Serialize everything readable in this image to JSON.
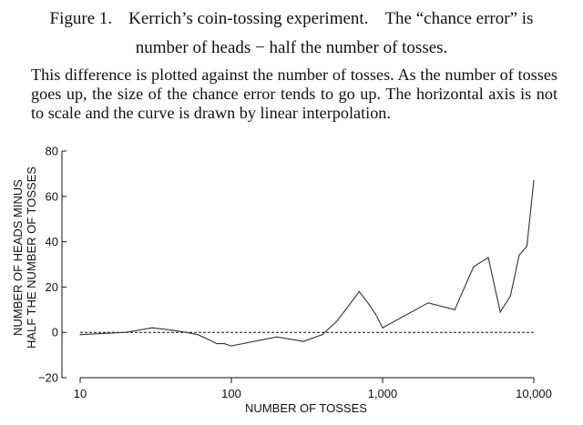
{
  "caption": {
    "figure_label": "Figure 1.",
    "title_part1": "Kerrich’s coin-tossing experiment.",
    "title_part2": "The “chance error” is",
    "line2": "number of heads − half the number of tosses."
  },
  "description": "This difference is plotted against the number of tosses. As the number of tosses goes up, the size of the chance error tends to go up. The horizontal axis is not to scale and the curve is drawn by linear interpolation.",
  "chart_data": {
    "type": "line",
    "xlabel": "NUMBER OF TOSSES",
    "ylabel_line1": "NUMBER OF HEADS MINUS",
    "ylabel_line2": "HALF THE NUMBER OF TOSSES",
    "x_scale": "log",
    "xlim": [
      10,
      10000
    ],
    "ylim": [
      -20,
      80
    ],
    "x_ticks": [
      10,
      100,
      1000,
      10000
    ],
    "x_tick_labels": [
      "10",
      "100",
      "1,000",
      "10,000"
    ],
    "y_ticks": [
      -20,
      0,
      20,
      40,
      60,
      80
    ],
    "y_tick_labels": [
      "−20",
      "0",
      "20",
      "40",
      "60",
      "80"
    ],
    "zero_line": "dashed",
    "grid": false,
    "series": [
      {
        "x": [
          10,
          20,
          30,
          40,
          50,
          60,
          70,
          80,
          90,
          100,
          200,
          300,
          400,
          500,
          600,
          700,
          800,
          900,
          1000,
          2000,
          3000,
          4000,
          5000,
          6000,
          7000,
          8000,
          9000,
          10000
        ],
        "y": [
          -1,
          0,
          2,
          1,
          0,
          -1,
          -3,
          -5,
          -5,
          -6,
          -2,
          -4,
          -1,
          5,
          12,
          18,
          13,
          8,
          2,
          13,
          10,
          29,
          33,
          9,
          16,
          34,
          38,
          67
        ]
      }
    ]
  }
}
